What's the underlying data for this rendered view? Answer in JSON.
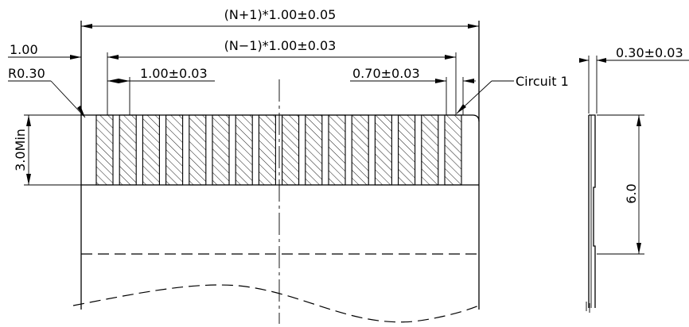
{
  "labels": {
    "overall_width": "(N+1)*1.00±0.05",
    "pitch_span": "(N−1)*1.00±0.03",
    "pitch": "1.00±0.03",
    "pad_width": "0.70±0.03",
    "edge_offset": "1.00",
    "corner_radius": "R0.30",
    "exposed_length": "3.0Min",
    "circuit_label": "Circuit  1",
    "thickness": "0.30±0.03",
    "stiffener_length": "6.0"
  },
  "drawing": {
    "conductor_count": 16
  }
}
